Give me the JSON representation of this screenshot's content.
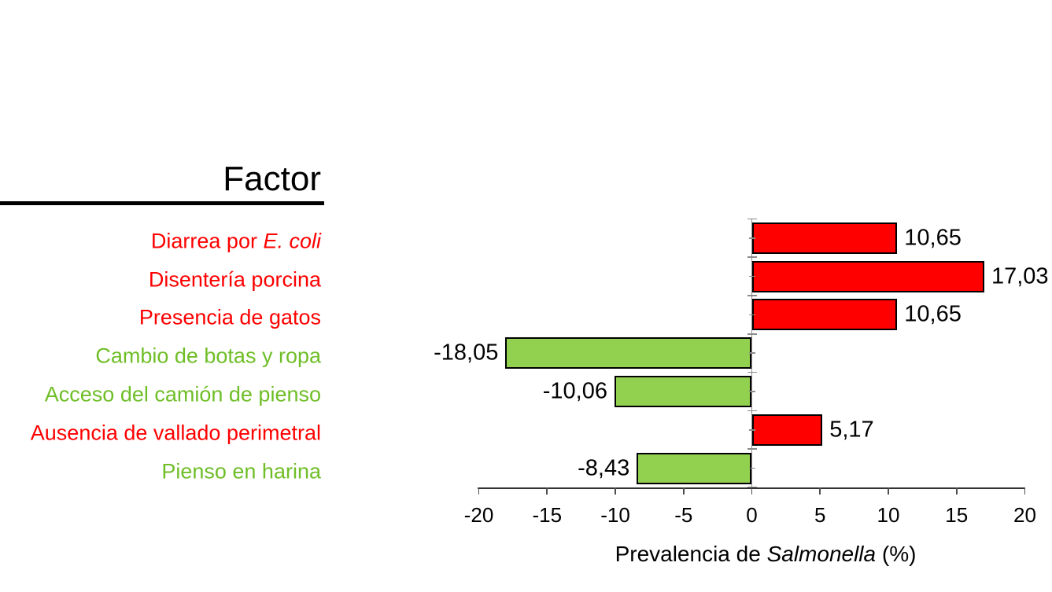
{
  "factor_column": {
    "header": "Factor"
  },
  "chart_data": {
    "type": "bar",
    "orientation": "horizontal",
    "title": "",
    "xlabel": "Prevalencia de Salmonella (%)",
    "xlabel_parts": {
      "prefix": "Prevalencia de ",
      "italic": "Salmonella",
      "suffix": " (%)"
    },
    "xlim": [
      -20,
      20
    ],
    "x_ticks": [
      -20,
      -15,
      -10,
      -5,
      0,
      5,
      10,
      15,
      20
    ],
    "x_tick_labels": [
      "-20",
      "-15",
      "-10",
      "-5",
      "0",
      "5",
      "10",
      "15",
      "20"
    ],
    "grid": false,
    "legend": false,
    "decimal_separator": "comma",
    "categories": [
      {
        "label": "Diarrea por E. coli",
        "label_parts": {
          "prefix": "Diarrea por ",
          "italic": "E. coli",
          "suffix": ""
        },
        "type": "risk",
        "value": 10.65,
        "value_label": "10,65"
      },
      {
        "label": "Disentería porcina",
        "label_parts": {
          "prefix": "Disentería porcina",
          "italic": "",
          "suffix": ""
        },
        "type": "risk",
        "value": 17.03,
        "value_label": "17,03"
      },
      {
        "label": "Presencia de gatos",
        "label_parts": {
          "prefix": "Presencia de gatos",
          "italic": "",
          "suffix": ""
        },
        "type": "risk",
        "value": 10.65,
        "value_label": "10,65"
      },
      {
        "label": "Cambio de botas y ropa",
        "label_parts": {
          "prefix": "Cambio de botas y ropa",
          "italic": "",
          "suffix": ""
        },
        "type": "protective",
        "value": -18.05,
        "value_label": "-18,05"
      },
      {
        "label": "Acceso del camión de pienso",
        "label_parts": {
          "prefix": "Acceso del camión de pienso",
          "italic": "",
          "suffix": ""
        },
        "type": "protective",
        "value": -10.06,
        "value_label": "-10,06"
      },
      {
        "label": "Ausencia de vallado perimetral",
        "label_parts": {
          "prefix": "Ausencia de vallado perimetral",
          "italic": "",
          "suffix": ""
        },
        "type": "risk",
        "value": 5.17,
        "value_label": "5,17"
      },
      {
        "label": "Pienso en harina",
        "label_parts": {
          "prefix": "Pienso en harina",
          "italic": "",
          "suffix": ""
        },
        "type": "protective",
        "value": -8.43,
        "value_label": "-8,43"
      }
    ],
    "colors": {
      "risk_bar": "#ff0000",
      "protective_bar": "#92d050",
      "risk_text": "#ff0000",
      "protective_text": "#6fbe27",
      "bar_border": "#000000",
      "value_text": "#000000",
      "axis_line": "#8c8c8c"
    }
  }
}
